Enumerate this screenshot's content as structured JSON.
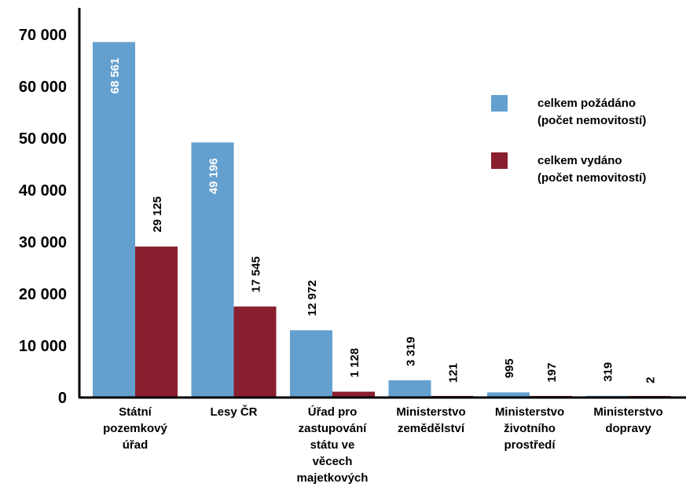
{
  "chart_data": {
    "type": "bar",
    "categories": [
      [
        "Státní",
        "pozemkový",
        "úřad"
      ],
      [
        "Lesy ČR"
      ],
      [
        "Úřad pro",
        "zastupování",
        "státu ve",
        "věcech",
        "majetkových"
      ],
      [
        "Ministerstvo",
        "zemědělství"
      ],
      [
        "Ministerstvo",
        "životního",
        "prostředí"
      ],
      [
        "Ministerstvo",
        "dopravy"
      ]
    ],
    "series": [
      {
        "name": [
          "celkem požádáno",
          "(počet nemovitostí)"
        ],
        "color": "#64a0cf",
        "values": [
          68561,
          49196,
          12972,
          3319,
          995,
          319
        ],
        "labels": [
          "68 561",
          "49 196",
          "12 972",
          "3 319",
          "995",
          "319"
        ]
      },
      {
        "name": [
          "celkem vydáno",
          "(počet nemovitostí)"
        ],
        "color": "#8a1f2f",
        "values": [
          29125,
          17545,
          1128,
          121,
          197,
          2
        ],
        "labels": [
          "29 125",
          "17 545",
          "1 128",
          "121",
          "197",
          "2"
        ]
      }
    ],
    "yticks": [
      0,
      10000,
      20000,
      30000,
      40000,
      50000,
      60000,
      70000
    ],
    "ytick_labels": [
      "0",
      "10 000",
      "20 000",
      "30 000",
      "40 000",
      "50 000",
      "60 000",
      "70 000"
    ],
    "ylim": [
      0,
      70000
    ],
    "legend": "right"
  }
}
